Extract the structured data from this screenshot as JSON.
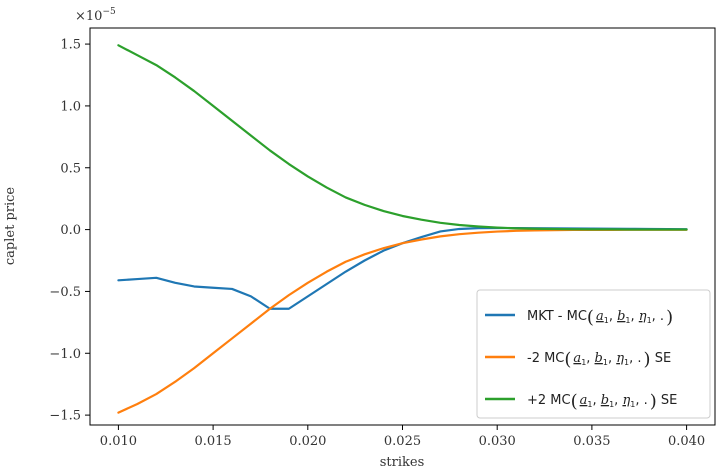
{
  "chart_data": {
    "type": "line",
    "title": "",
    "xlabel": "strikes",
    "ylabel": "caplet price",
    "y_scale_label": "×10^−5",
    "y_scale_base": "×10",
    "y_scale_exp": "−5",
    "xlim": [
      0.0085,
      0.0415
    ],
    "ylim": [
      -1.58,
      1.63
    ],
    "x_ticks": [
      0.01,
      0.015,
      0.02,
      0.025,
      0.03,
      0.035,
      0.04
    ],
    "x_tick_labels": [
      "0.010",
      "0.015",
      "0.020",
      "0.025",
      "0.030",
      "0.035",
      "0.040"
    ],
    "y_ticks": [
      -1.5,
      -1.0,
      -0.5,
      0.0,
      0.5,
      1.0,
      1.5
    ],
    "y_tick_labels": [
      "−1.5",
      "−1.0",
      "−0.5",
      "0.0",
      "0.5",
      "1.0",
      "1.5"
    ],
    "grid": false,
    "legend_position": "lower-right",
    "series": [
      {
        "name": "MKT - MC(a_1, b_1, η_1, .)",
        "color": "#1f77b4",
        "x": [
          0.01,
          0.011,
          0.012,
          0.013,
          0.014,
          0.015,
          0.016,
          0.017,
          0.018,
          0.019,
          0.02,
          0.021,
          0.022,
          0.023,
          0.024,
          0.025,
          0.026,
          0.027,
          0.028,
          0.029,
          0.03,
          0.031,
          0.032,
          0.033,
          0.034,
          0.035,
          0.036,
          0.037,
          0.038,
          0.039,
          0.04
        ],
        "y": [
          -0.41,
          -0.4,
          -0.39,
          -0.43,
          -0.46,
          -0.47,
          -0.48,
          -0.54,
          -0.64,
          -0.64,
          -0.54,
          -0.44,
          -0.34,
          -0.25,
          -0.17,
          -0.11,
          -0.06,
          -0.015,
          0.005,
          0.012,
          0.013,
          0.012,
          0.011,
          0.01,
          0.009,
          0.008,
          0.007,
          0.006,
          0.005,
          0.004,
          0.003
        ]
      },
      {
        "name": "-2 MC(a_1, b_1, η_1, .) SE",
        "color": "#ff7f0e",
        "x": [
          0.01,
          0.011,
          0.012,
          0.013,
          0.014,
          0.015,
          0.016,
          0.017,
          0.018,
          0.019,
          0.02,
          0.021,
          0.022,
          0.023,
          0.024,
          0.025,
          0.026,
          0.027,
          0.028,
          0.029,
          0.03,
          0.031,
          0.032,
          0.033,
          0.034,
          0.035,
          0.036,
          0.037,
          0.038,
          0.039,
          0.04
        ],
        "y": [
          -1.48,
          -1.41,
          -1.33,
          -1.23,
          -1.12,
          -1.0,
          -0.88,
          -0.76,
          -0.64,
          -0.53,
          -0.43,
          -0.34,
          -0.26,
          -0.2,
          -0.15,
          -0.11,
          -0.08,
          -0.055,
          -0.037,
          -0.025,
          -0.016,
          -0.01,
          -0.007,
          -0.005,
          -0.003,
          -0.002,
          -0.002,
          -0.001,
          -0.001,
          -0.001,
          -0.001
        ]
      },
      {
        "name": "+2 MC(a_1, b_1, η_1, .) SE",
        "color": "#2ca02c",
        "x": [
          0.01,
          0.011,
          0.012,
          0.013,
          0.014,
          0.015,
          0.016,
          0.017,
          0.018,
          0.019,
          0.02,
          0.021,
          0.022,
          0.023,
          0.024,
          0.025,
          0.026,
          0.027,
          0.028,
          0.029,
          0.03,
          0.031,
          0.032,
          0.033,
          0.034,
          0.035,
          0.036,
          0.037,
          0.038,
          0.039,
          0.04
        ],
        "y": [
          1.49,
          1.41,
          1.33,
          1.23,
          1.12,
          1.0,
          0.88,
          0.76,
          0.64,
          0.53,
          0.43,
          0.34,
          0.26,
          0.2,
          0.15,
          0.11,
          0.08,
          0.055,
          0.037,
          0.025,
          0.016,
          0.01,
          0.007,
          0.005,
          0.003,
          0.002,
          0.002,
          0.001,
          0.001,
          0.001,
          0.001
        ]
      }
    ],
    "legend_entries": [
      {
        "prefix": "MKT - MC",
        "suffix": ""
      },
      {
        "prefix": "-2 MC",
        "suffix": " SE"
      },
      {
        "prefix": "+2 MC",
        "suffix": " SE"
      }
    ],
    "legend_math": {
      "a": "a",
      "b": "b",
      "eta": "η",
      "sub": "1",
      "dot": "."
    }
  }
}
